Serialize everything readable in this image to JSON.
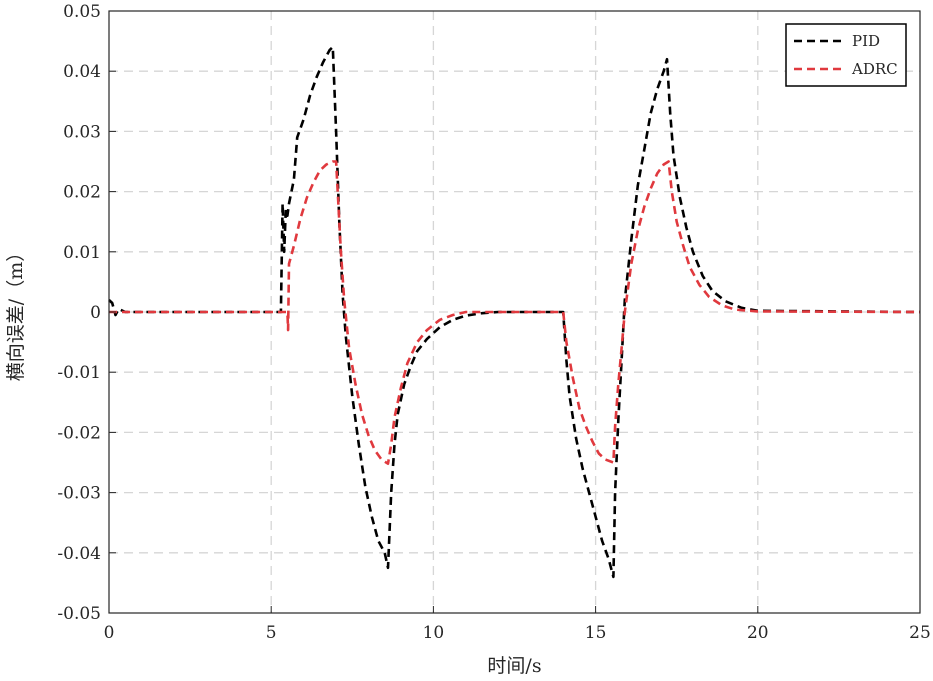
{
  "chart_data": {
    "type": "line",
    "title": "",
    "xlabel": "时间/s",
    "ylabel": "横向误差/（m）",
    "xlim": [
      0,
      25
    ],
    "ylim": [
      -0.05,
      0.05
    ],
    "xticks": [
      0,
      5,
      10,
      15,
      20,
      25
    ],
    "xtick_labels": [
      "0",
      "5",
      "10",
      "15",
      "20",
      "25"
    ],
    "yticks": [
      0.05,
      0.04,
      0.03,
      0.02,
      0.01,
      0,
      -0.01,
      -0.02,
      -0.03,
      -0.04,
      -0.05
    ],
    "ytick_labels": [
      "0.05",
      "0.04",
      "0.03",
      "0.02",
      "0.01",
      "0",
      "-0.01",
      "-0.02",
      "-0.03",
      "-0.04",
      "-0.05"
    ],
    "grid": true,
    "legend_position": "top-right",
    "series": [
      {
        "name": "PID",
        "color": "#000000",
        "style": "dashed",
        "points": [
          [
            0,
            0.002
          ],
          [
            0.1,
            0.0015
          ],
          [
            0.2,
            -0.0005
          ],
          [
            0.3,
            0.0005
          ],
          [
            0.5,
            0
          ],
          [
            1,
            0
          ],
          [
            3,
            0
          ],
          [
            5.3,
            0
          ],
          [
            5.35,
            0.018
          ],
          [
            5.4,
            0.01
          ],
          [
            5.45,
            0.017
          ],
          [
            5.5,
            0.016
          ],
          [
            5.55,
            0.018
          ],
          [
            5.7,
            0.022
          ],
          [
            5.8,
            0.029
          ],
          [
            6.0,
            0.032
          ],
          [
            6.2,
            0.036
          ],
          [
            6.4,
            0.039
          ],
          [
            6.6,
            0.0415
          ],
          [
            6.8,
            0.0435
          ],
          [
            6.9,
            0.044
          ],
          [
            7.0,
            0.03
          ],
          [
            7.1,
            0.015
          ],
          [
            7.2,
            0.003
          ],
          [
            7.3,
            -0.004
          ],
          [
            7.5,
            -0.014
          ],
          [
            7.7,
            -0.022
          ],
          [
            7.9,
            -0.029
          ],
          [
            8.1,
            -0.034
          ],
          [
            8.3,
            -0.038
          ],
          [
            8.5,
            -0.04
          ],
          [
            8.6,
            -0.0425
          ],
          [
            8.7,
            -0.03
          ],
          [
            8.8,
            -0.022
          ],
          [
            8.9,
            -0.017
          ],
          [
            9.1,
            -0.012
          ],
          [
            9.3,
            -0.009
          ],
          [
            9.5,
            -0.0065
          ],
          [
            9.8,
            -0.0045
          ],
          [
            10.2,
            -0.0025
          ],
          [
            10.6,
            -0.0013
          ],
          [
            11,
            -0.0006
          ],
          [
            11.5,
            -0.0002
          ],
          [
            12,
            0
          ],
          [
            14.0,
            0
          ],
          [
            14.1,
            -0.008
          ],
          [
            14.2,
            -0.014
          ],
          [
            14.4,
            -0.021
          ],
          [
            14.6,
            -0.026
          ],
          [
            14.8,
            -0.03
          ],
          [
            15.0,
            -0.034
          ],
          [
            15.2,
            -0.038
          ],
          [
            15.4,
            -0.041
          ],
          [
            15.55,
            -0.044
          ],
          [
            15.6,
            -0.03
          ],
          [
            15.7,
            -0.018
          ],
          [
            15.8,
            -0.008
          ],
          [
            15.9,
            0.002
          ],
          [
            16.1,
            0.012
          ],
          [
            16.3,
            0.021
          ],
          [
            16.5,
            0.027
          ],
          [
            16.7,
            0.033
          ],
          [
            16.9,
            0.037
          ],
          [
            17.1,
            0.04
          ],
          [
            17.2,
            0.042
          ],
          [
            17.3,
            0.033
          ],
          [
            17.4,
            0.026
          ],
          [
            17.6,
            0.019
          ],
          [
            17.8,
            0.014
          ],
          [
            18.0,
            0.01
          ],
          [
            18.3,
            0.006
          ],
          [
            18.6,
            0.0035
          ],
          [
            19.0,
            0.0018
          ],
          [
            19.5,
            0.0007
          ],
          [
            20.0,
            0.0002
          ],
          [
            25,
            0
          ]
        ]
      },
      {
        "name": "ADRC",
        "color": "#e0393e",
        "style": "dashed",
        "points": [
          [
            0,
            0
          ],
          [
            1,
            0
          ],
          [
            3,
            0
          ],
          [
            5.5,
            0
          ],
          [
            5.52,
            -0.003
          ],
          [
            5.55,
            0.008
          ],
          [
            5.7,
            0.011
          ],
          [
            5.9,
            0.0155
          ],
          [
            6.1,
            0.019
          ],
          [
            6.3,
            0.0215
          ],
          [
            6.5,
            0.0235
          ],
          [
            6.7,
            0.0245
          ],
          [
            6.9,
            0.025
          ],
          [
            7.0,
            0.025
          ],
          [
            7.05,
            0.02
          ],
          [
            7.15,
            0.01
          ],
          [
            7.25,
            0.002
          ],
          [
            7.4,
            -0.006
          ],
          [
            7.6,
            -0.012
          ],
          [
            7.8,
            -0.017
          ],
          [
            8.0,
            -0.0205
          ],
          [
            8.2,
            -0.023
          ],
          [
            8.4,
            -0.0245
          ],
          [
            8.6,
            -0.0252
          ],
          [
            8.7,
            -0.022
          ],
          [
            8.8,
            -0.0175
          ],
          [
            9.0,
            -0.0125
          ],
          [
            9.2,
            -0.0085
          ],
          [
            9.5,
            -0.005
          ],
          [
            9.8,
            -0.003
          ],
          [
            10.2,
            -0.0013
          ],
          [
            10.6,
            -0.0005
          ],
          [
            11,
            0
          ],
          [
            14.0,
            0
          ],
          [
            14.1,
            -0.005
          ],
          [
            14.3,
            -0.011
          ],
          [
            14.5,
            -0.016
          ],
          [
            14.7,
            -0.019
          ],
          [
            14.9,
            -0.0215
          ],
          [
            15.1,
            -0.0235
          ],
          [
            15.3,
            -0.0245
          ],
          [
            15.55,
            -0.025
          ],
          [
            15.6,
            -0.019
          ],
          [
            15.7,
            -0.012
          ],
          [
            15.8,
            -0.006
          ],
          [
            15.9,
            0.0
          ],
          [
            16.1,
            0.008
          ],
          [
            16.3,
            0.0135
          ],
          [
            16.5,
            0.0175
          ],
          [
            16.7,
            0.0205
          ],
          [
            16.9,
            0.023
          ],
          [
            17.1,
            0.0245
          ],
          [
            17.25,
            0.025
          ],
          [
            17.35,
            0.02
          ],
          [
            17.5,
            0.015
          ],
          [
            17.7,
            0.011
          ],
          [
            17.9,
            0.0075
          ],
          [
            18.2,
            0.0045
          ],
          [
            18.5,
            0.0025
          ],
          [
            18.9,
            0.0011
          ],
          [
            19.3,
            0.0004
          ],
          [
            20.0,
            0.0001
          ],
          [
            25,
            0
          ]
        ]
      }
    ]
  }
}
